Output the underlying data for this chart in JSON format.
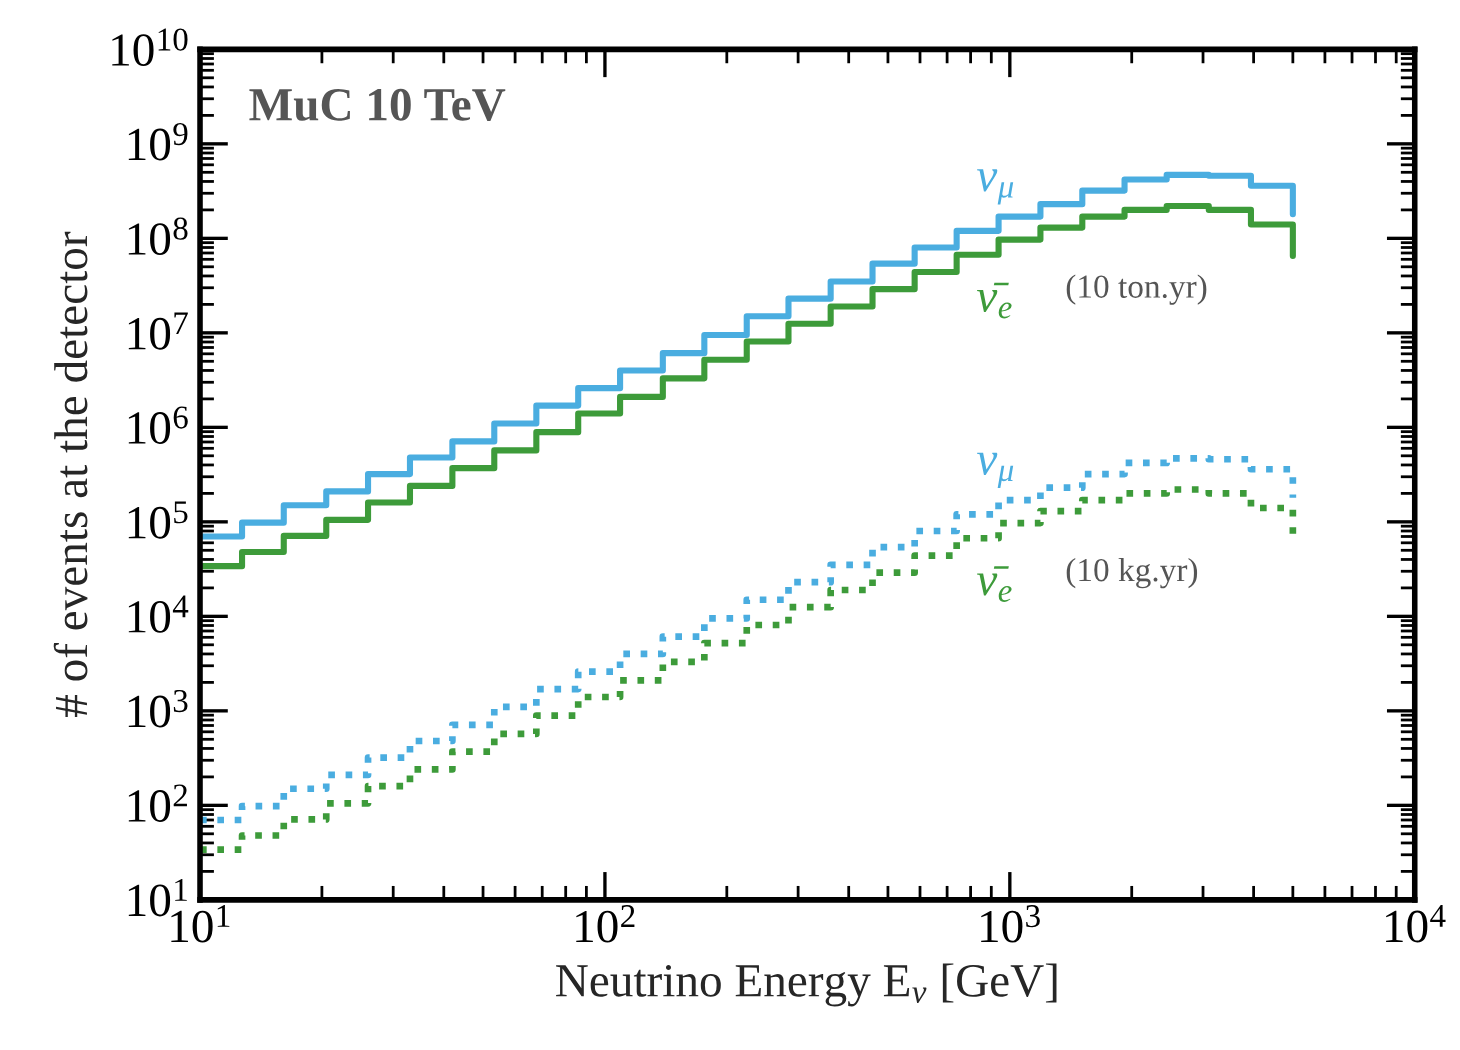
{
  "chart_data": {
    "type": "step",
    "xlabel": "Neutrino Energy E$_{ν}$ [GeV]",
    "ylabel": "# of events at the detector",
    "annotations": [
      "MuC 10 TeV",
      "(10 ton.yr)",
      "(10 kg.yr)"
    ],
    "x": [
      10,
      12.7,
      16.1,
      20.5,
      26.0,
      33.0,
      42.0,
      53.3,
      67.7,
      85.9,
      109,
      139,
      176,
      224,
      284,
      361,
      458,
      582,
      739,
      938,
      1190,
      1510,
      1920,
      2440,
      3100,
      3940,
      5000
    ],
    "series": [
      {
        "name": "ν$_{μ}$",
        "color": "#4aade0",
        "line_style": "solid",
        "values": [
          70000.0,
          98000.0,
          150000.0,
          210000.0,
          320000.0,
          480000.0,
          710000.0,
          1100000.0,
          1700000.0,
          2600000.0,
          4000000.0,
          6100000.0,
          9500000.0,
          15000000.0,
          23000000.0,
          35000000.0,
          54000000.0,
          80000000.0,
          120000000.0,
          170000000.0,
          230000000.0,
          320000000.0,
          420000000.0,
          470000000.0,
          460000000.0,
          360000000.0,
          180000000.0
        ]
      },
      {
        "name": "ν̄$_{e}$",
        "color": "#3d9b3a",
        "line_style": "solid",
        "values": [
          34000.0,
          48000.0,
          71000.0,
          105000.0,
          160000.0,
          240000.0,
          370000.0,
          570000.0,
          890000.0,
          1400000.0,
          2100000.0,
          3300000.0,
          5200000.0,
          8100000.0,
          12500000.0,
          19000000.0,
          29000000.0,
          44000000.0,
          67000000.0,
          97000000.0,
          130000000.0,
          170000000.0,
          200000000.0,
          220000000.0,
          200000000.0,
          140000000.0,
          65000000.0
        ]
      },
      {
        "name": "ν$_{μ}$",
        "color": "#4aade0",
        "line_style": "dotted",
        "values": [
          70,
          98,
          150,
          210,
          320,
          480,
          710,
          1100.0,
          1700.0,
          2600.0,
          4000.0,
          6100.0,
          9500.0,
          15000.0,
          23000.0,
          35000.0,
          54000.0,
          80000.0,
          120000.0,
          170000.0,
          230000.0,
          320000.0,
          420000.0,
          470000.0,
          460000.0,
          360000.0,
          180000.0
        ]
      },
      {
        "name": "ν̄$_{e}$",
        "color": "#3d9b3a",
        "line_style": "dotted",
        "values": [
          34,
          48,
          71,
          105,
          160,
          240,
          370,
          570,
          890,
          1400.0,
          2100.0,
          3300.0,
          5200.0,
          8100.0,
          12500.0,
          19000.0,
          29000.0,
          44000.0,
          67000.0,
          97000.0,
          130000.0,
          170000.0,
          200000.0,
          220000.0,
          200000.0,
          140000.0,
          66000.0
        ]
      }
    ],
    "log": "xy",
    "xlim": [
      10,
      10000
    ],
    "ylim": [
      10,
      10000000000.0
    ],
    "xticks": [
      {
        "value": 10,
        "label": "10$^{1}$"
      },
      {
        "value": 100,
        "label": "10$^{2}$"
      },
      {
        "value": 1000,
        "label": "10$^{3}$"
      },
      {
        "value": 10000,
        "label": "10$^{4}$"
      }
    ],
    "yticks": [
      {
        "value": 10,
        "label": "10$^{1}$"
      },
      {
        "value": 100,
        "label": "10$^{2}$"
      },
      {
        "value": 1000,
        "label": "10$^{3}$"
      },
      {
        "value": 10000,
        "label": "10$^{4}$"
      },
      {
        "value": 100000,
        "label": "10$^{5}$"
      },
      {
        "value": 1000000,
        "label": "10$^{6}$"
      },
      {
        "value": 10000000,
        "label": "10$^{7}$"
      },
      {
        "value": 100000000,
        "label": "10$^{8}$"
      },
      {
        "value": 1000000000,
        "label": "10$^{9}$"
      },
      {
        "value": 10000000000,
        "label": "10$^{10}$"
      }
    ],
    "grid": false,
    "legend": false
  }
}
